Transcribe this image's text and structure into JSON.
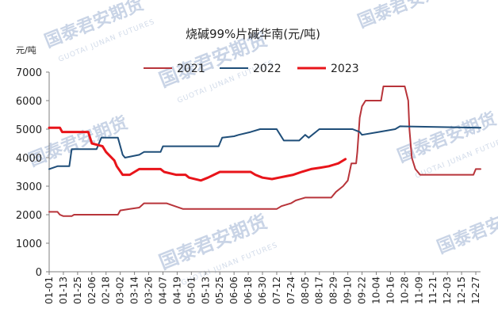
{
  "chart_data": {
    "type": "line",
    "title": "烧碱99%片碱华南(元/吨)",
    "ylabel": "元/吨",
    "ylim": [
      0,
      7000
    ],
    "yticks": [
      0,
      1000,
      2000,
      3000,
      4000,
      5000,
      6000,
      7000
    ],
    "x_tick_labels": [
      "01-01",
      "01-13",
      "01-25",
      "02-06",
      "02-18",
      "03-02",
      "03-14",
      "03-26",
      "04-07",
      "04-19",
      "05-01",
      "05-13",
      "05-25",
      "06-06",
      "06-18",
      "06-30",
      "07-12",
      "07-24",
      "08-05",
      "08-17",
      "08-29",
      "09-10",
      "09-22",
      "10-04",
      "10-16",
      "10-28",
      "11-09",
      "11-21",
      "12-03",
      "12-15",
      "12-27"
    ],
    "x_domain": [
      "01-01",
      "12-31"
    ],
    "legend_position": "top",
    "grid": false,
    "series": [
      {
        "name": "2021",
        "color": "#b8343a",
        "points": [
          [
            "01-01",
            2100
          ],
          [
            "01-08",
            2100
          ],
          [
            "01-10",
            2000
          ],
          [
            "01-13",
            1950
          ],
          [
            "01-20",
            1950
          ],
          [
            "01-22",
            2000
          ],
          [
            "02-28",
            2000
          ],
          [
            "03-02",
            2150
          ],
          [
            "03-10",
            2200
          ],
          [
            "03-18",
            2250
          ],
          [
            "03-22",
            2400
          ],
          [
            "04-10",
            2400
          ],
          [
            "04-17",
            2300
          ],
          [
            "04-24",
            2200
          ],
          [
            "07-12",
            2200
          ],
          [
            "07-16",
            2300
          ],
          [
            "07-24",
            2400
          ],
          [
            "07-28",
            2500
          ],
          [
            "08-05",
            2600
          ],
          [
            "08-27",
            2600
          ],
          [
            "08-31",
            2800
          ],
          [
            "09-06",
            3000
          ],
          [
            "09-10",
            3200
          ],
          [
            "09-13",
            3800
          ],
          [
            "09-17",
            3800
          ],
          [
            "09-18",
            4200
          ],
          [
            "09-20",
            5400
          ],
          [
            "09-22",
            5800
          ],
          [
            "09-25",
            6000
          ],
          [
            "10-08",
            6000
          ],
          [
            "10-10",
            6500
          ],
          [
            "10-28",
            6500
          ],
          [
            "10-31",
            6000
          ],
          [
            "11-01",
            5000
          ],
          [
            "11-03",
            4000
          ],
          [
            "11-06",
            3600
          ],
          [
            "11-10",
            3400
          ],
          [
            "12-25",
            3400
          ],
          [
            "12-27",
            3600
          ],
          [
            "12-31",
            3600
          ]
        ]
      },
      {
        "name": "2022",
        "color": "#1f4e79",
        "points": [
          [
            "01-01",
            3600
          ],
          [
            "01-08",
            3700
          ],
          [
            "01-18",
            3700
          ],
          [
            "01-20",
            4300
          ],
          [
            "02-10",
            4300
          ],
          [
            "02-14",
            4700
          ],
          [
            "02-28",
            4700
          ],
          [
            "03-04",
            4100
          ],
          [
            "03-06",
            4000
          ],
          [
            "03-18",
            4100
          ],
          [
            "03-22",
            4200
          ],
          [
            "04-05",
            4200
          ],
          [
            "04-07",
            4400
          ],
          [
            "05-24",
            4400
          ],
          [
            "05-27",
            4700
          ],
          [
            "06-06",
            4750
          ],
          [
            "06-10",
            4800
          ],
          [
            "06-20",
            4900
          ],
          [
            "06-28",
            5000
          ],
          [
            "07-12",
            5000
          ],
          [
            "07-15",
            4800
          ],
          [
            "07-18",
            4600
          ],
          [
            "07-31",
            4600
          ],
          [
            "08-05",
            4800
          ],
          [
            "08-08",
            4700
          ],
          [
            "08-17",
            5000
          ],
          [
            "09-14",
            5000
          ],
          [
            "09-20",
            4900
          ],
          [
            "09-22",
            4800
          ],
          [
            "10-06",
            4900
          ],
          [
            "10-20",
            5000
          ],
          [
            "10-24",
            5100
          ],
          [
            "12-31",
            5050
          ]
        ]
      },
      {
        "name": "2023",
        "color": "#e8141a",
        "points": [
          [
            "01-01",
            5050
          ],
          [
            "01-10",
            5050
          ],
          [
            "01-12",
            4900
          ],
          [
            "02-03",
            4900
          ],
          [
            "02-06",
            4500
          ],
          [
            "02-15",
            4400
          ],
          [
            "02-18",
            4200
          ],
          [
            "02-25",
            3900
          ],
          [
            "02-27",
            3700
          ],
          [
            "03-04",
            3400
          ],
          [
            "03-10",
            3400
          ],
          [
            "03-14",
            3500
          ],
          [
            "03-18",
            3600
          ],
          [
            "04-05",
            3600
          ],
          [
            "04-08",
            3500
          ],
          [
            "04-18",
            3400
          ],
          [
            "04-26",
            3400
          ],
          [
            "04-29",
            3300
          ],
          [
            "05-09",
            3200
          ],
          [
            "05-15",
            3300
          ],
          [
            "05-20",
            3400
          ],
          [
            "05-25",
            3500
          ],
          [
            "06-20",
            3500
          ],
          [
            "06-24",
            3400
          ],
          [
            "06-30",
            3300
          ],
          [
            "07-08",
            3250
          ],
          [
            "07-14",
            3300
          ],
          [
            "07-20",
            3350
          ],
          [
            "07-26",
            3400
          ],
          [
            "08-02",
            3500
          ],
          [
            "08-10",
            3600
          ],
          [
            "08-18",
            3650
          ],
          [
            "08-25",
            3700
          ],
          [
            "08-29",
            3750
          ],
          [
            "09-02",
            3800
          ],
          [
            "09-06",
            3900
          ],
          [
            "09-08",
            3950
          ]
        ]
      }
    ]
  },
  "watermarks": [
    "国泰君安期货",
    "GUOTAI JUNAN FUTURES"
  ]
}
